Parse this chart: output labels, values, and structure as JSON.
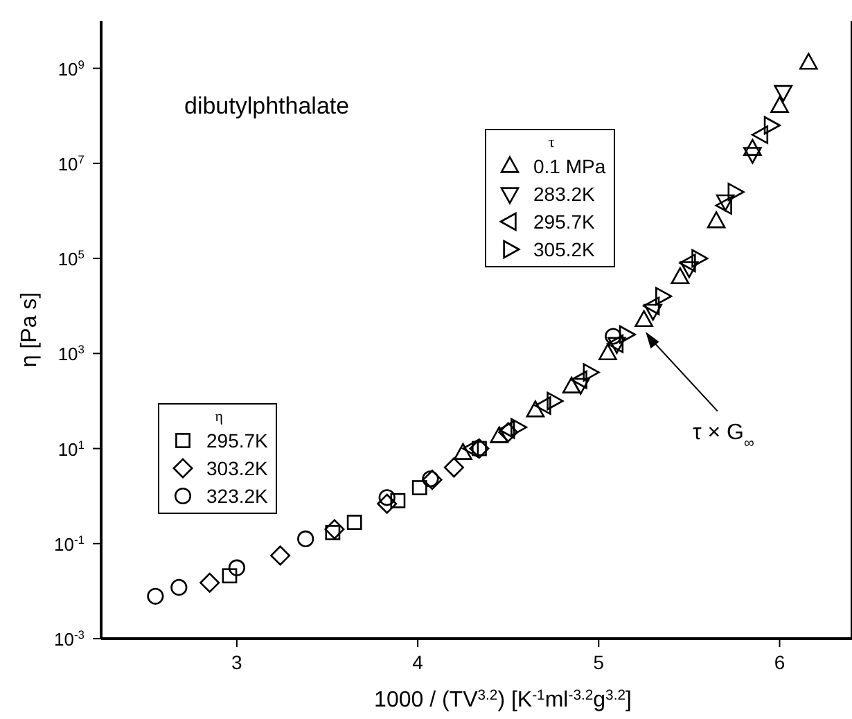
{
  "chart_data": {
    "type": "scatter",
    "title": "dibutylphthalate",
    "xlabel": "1000 / (TV$^{3.2}$)  [K$^{-1}$ml$^{-3.2}$g$^{3.2}$]",
    "ylabel": "η  [Pa s]",
    "legend_title": [
      "τ",
      "η"
    ],
    "legend": [
      "top",
      "left"
    ],
    "log": "y",
    "xlim": [
      2.25,
      6.4
    ],
    "xticks": [
      3,
      4,
      5,
      6
    ],
    "ylim": [
      0.001,
      10000000000
    ],
    "yticks": [
      {
        "value": 0.001,
        "label": "10$^{-3}$"
      },
      {
        "value": 0.1,
        "label": "10$^{-1}$"
      },
      {
        "value": 10,
        "label": "10$^{1}$"
      },
      {
        "value": 1000,
        "label": "10$^{3}$"
      },
      {
        "value": 100000,
        "label": "10$^{5}$"
      },
      {
        "value": 10000000,
        "label": "10$^{7}$"
      },
      {
        "value": 1000000000,
        "label": "10$^{9}$"
      }
    ],
    "annotations": [
      {
        "text": "τ × G$_{∞}$",
        "x": 5.27,
        "y": 3000
      }
    ],
    "series": [
      {
        "name": "0.1 MPa",
        "marker": "triangle",
        "color": "#000000",
        "x": [
          4.25,
          4.45,
          4.65,
          4.85,
          5.05,
          5.25,
          5.45,
          5.65,
          5.85,
          6.0,
          6.16
        ],
        "values": [
          8,
          18,
          63,
          200,
          1000,
          5000,
          40000,
          600000,
          20000000,
          160000000,
          1300000000
        ]
      },
      {
        "name": "283.2K",
        "marker": "triangle-down",
        "color": "#000000",
        "x": [
          4.9,
          5.1,
          5.3,
          5.5,
          5.7,
          5.85,
          6.02
        ],
        "values": [
          220,
          1600,
          8000,
          63000,
          1600000,
          16000000,
          320000000
        ]
      },
      {
        "name": "295.7K",
        "marker": "triangle-left",
        "color": "#000000",
        "x": [
          4.3,
          4.5,
          4.7,
          4.9,
          5.1,
          5.3,
          5.5,
          5.7,
          5.9
        ],
        "values": [
          10,
          25,
          80,
          280,
          1600,
          10000,
          80000,
          1300000,
          40000000
        ]
      },
      {
        "name": "305.2K",
        "marker": "triangle-right",
        "color": "#000000",
        "x": [
          4.55,
          4.75,
          4.95,
          5.15,
          5.35,
          5.55,
          5.75,
          5.95
        ],
        "values": [
          28,
          100,
          400,
          2500,
          16000,
          100000,
          2500000,
          63000000
        ]
      },
      {
        "name": "295.7K",
        "marker": "square",
        "color": "#000000",
        "x": [
          2.96,
          3.53,
          3.65,
          3.89,
          4.01,
          4.34
        ],
        "values": [
          0.021,
          0.17,
          0.28,
          0.8,
          1.5,
          10
        ]
      },
      {
        "name": "303.2K",
        "marker": "diamond",
        "color": "#000000",
        "x": [
          2.85,
          3.24,
          3.54,
          3.83,
          4.08,
          4.2,
          4.34,
          4.5
        ],
        "values": [
          0.015,
          0.056,
          0.2,
          0.69,
          2.2,
          4,
          10,
          22
        ]
      },
      {
        "name": "323.2K",
        "marker": "circle",
        "color": "#000000",
        "x": [
          2.55,
          2.68,
          3.0,
          3.38,
          3.83,
          4.07,
          5.08
        ],
        "values": [
          0.0078,
          0.012,
          0.031,
          0.126,
          0.93,
          2.3,
          2300
        ]
      }
    ]
  }
}
